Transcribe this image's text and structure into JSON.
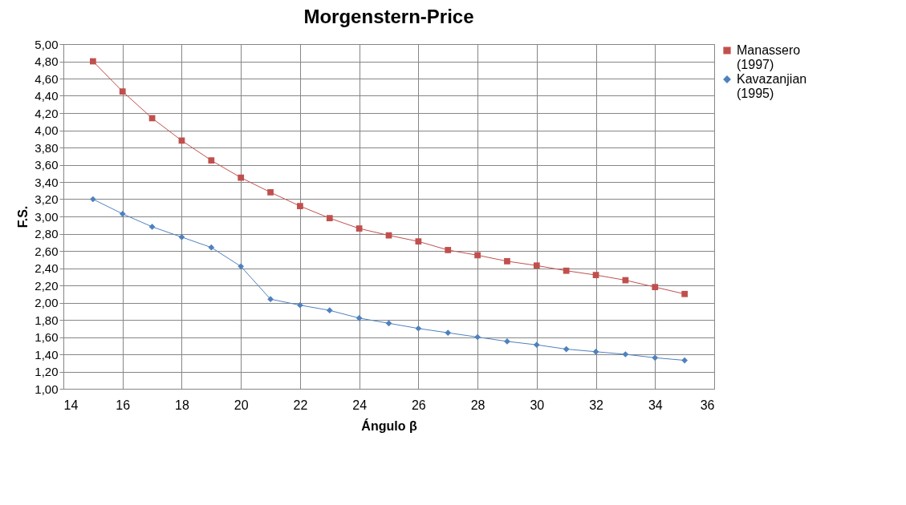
{
  "chart_data": {
    "type": "line",
    "title": "Morgenstern-Price",
    "xlabel": "Ángulo β",
    "ylabel": "F.S.",
    "x": [
      15,
      16,
      17,
      18,
      19,
      20,
      21,
      22,
      23,
      24,
      25,
      26,
      27,
      28,
      29,
      30,
      31,
      32,
      33,
      34,
      35
    ],
    "series": [
      {
        "name": "Manassero (1997)",
        "color": "#c0504d",
        "marker": "square",
        "values": [
          4.8,
          4.45,
          4.14,
          3.88,
          3.65,
          3.45,
          3.28,
          3.12,
          2.98,
          2.86,
          2.78,
          2.71,
          2.61,
          2.55,
          2.48,
          2.43,
          2.37,
          2.32,
          2.26,
          2.18,
          2.1
        ]
      },
      {
        "name": "Kavazanjian (1995)",
        "color": "#4f81bd",
        "marker": "diamond",
        "values": [
          3.2,
          3.03,
          2.88,
          2.76,
          2.64,
          2.42,
          2.04,
          1.97,
          1.91,
          1.82,
          1.76,
          1.7,
          1.65,
          1.6,
          1.55,
          1.51,
          1.46,
          1.43,
          1.4,
          1.36,
          1.33
        ]
      }
    ],
    "xlim": [
      14,
      36
    ],
    "xticks": [
      14,
      16,
      18,
      20,
      22,
      24,
      26,
      28,
      30,
      32,
      34,
      36
    ],
    "ylim": [
      1,
      5
    ],
    "yticks": [
      {
        "value": 1,
        "label": "1,00"
      },
      {
        "value": 1.2,
        "label": "1,20"
      },
      {
        "value": 1.4,
        "label": "1,40"
      },
      {
        "value": 1.6,
        "label": "1,60"
      },
      {
        "value": 1.8,
        "label": "1,80"
      },
      {
        "value": 2,
        "label": "2,00"
      },
      {
        "value": 2.2,
        "label": "2,20"
      },
      {
        "value": 2.4,
        "label": "2,40"
      },
      {
        "value": 2.6,
        "label": "2,60"
      },
      {
        "value": 2.8,
        "label": "2,80"
      },
      {
        "value": 3,
        "label": "3,00"
      },
      {
        "value": 3.2,
        "label": "3,20"
      },
      {
        "value": 3.4,
        "label": "3,40"
      },
      {
        "value": 3.6,
        "label": "3,60"
      },
      {
        "value": 3.8,
        "label": "3,80"
      },
      {
        "value": 4,
        "label": "4,00"
      },
      {
        "value": 4.2,
        "label": "4,20"
      },
      {
        "value": 4.4,
        "label": "4,40"
      },
      {
        "value": 4.6,
        "label": "4,60"
      },
      {
        "value": 4.8,
        "label": "4,80"
      },
      {
        "value": 5,
        "label": "5,00"
      }
    ],
    "grid": true,
    "legend": "right",
    "line_style": "solid"
  }
}
